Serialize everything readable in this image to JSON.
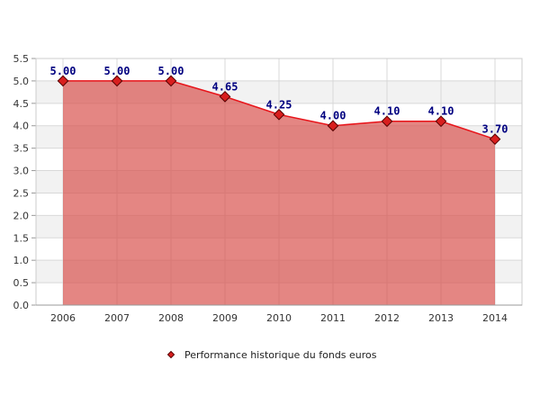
{
  "chart_data": {
    "type": "area",
    "categories": [
      "2006",
      "2007",
      "2008",
      "2009",
      "2010",
      "2011",
      "2012",
      "2013",
      "2014"
    ],
    "series": [
      {
        "name": "Performance historique du fonds euros",
        "values": [
          5.0,
          5.0,
          5.0,
          4.65,
          4.25,
          4.0,
          4.1,
          4.1,
          3.7
        ],
        "data_labels": [
          "5.00",
          "5.00",
          "5.00",
          "4.65",
          "4.25",
          "4.00",
          "4.10",
          "4.10",
          "3.70"
        ]
      }
    ],
    "title": "",
    "xlabel": "",
    "ylabel": "",
    "ylim": [
      0,
      5.5
    ],
    "yticks": [
      "0.0",
      "0.5",
      "1.0",
      "1.5",
      "2.0",
      "2.5",
      "3.0",
      "3.5",
      "4.0",
      "4.5",
      "5.0",
      "5.5"
    ],
    "grid": true,
    "legend_position": "bottom",
    "colors": {
      "area_fill": "#d9534f",
      "line": "#e8141a",
      "marker_fill": "#d81e1e",
      "marker_stroke": "#550000",
      "data_label": "#000080",
      "band": "#f2f2f2",
      "gridline": "#d8d8d8"
    }
  }
}
